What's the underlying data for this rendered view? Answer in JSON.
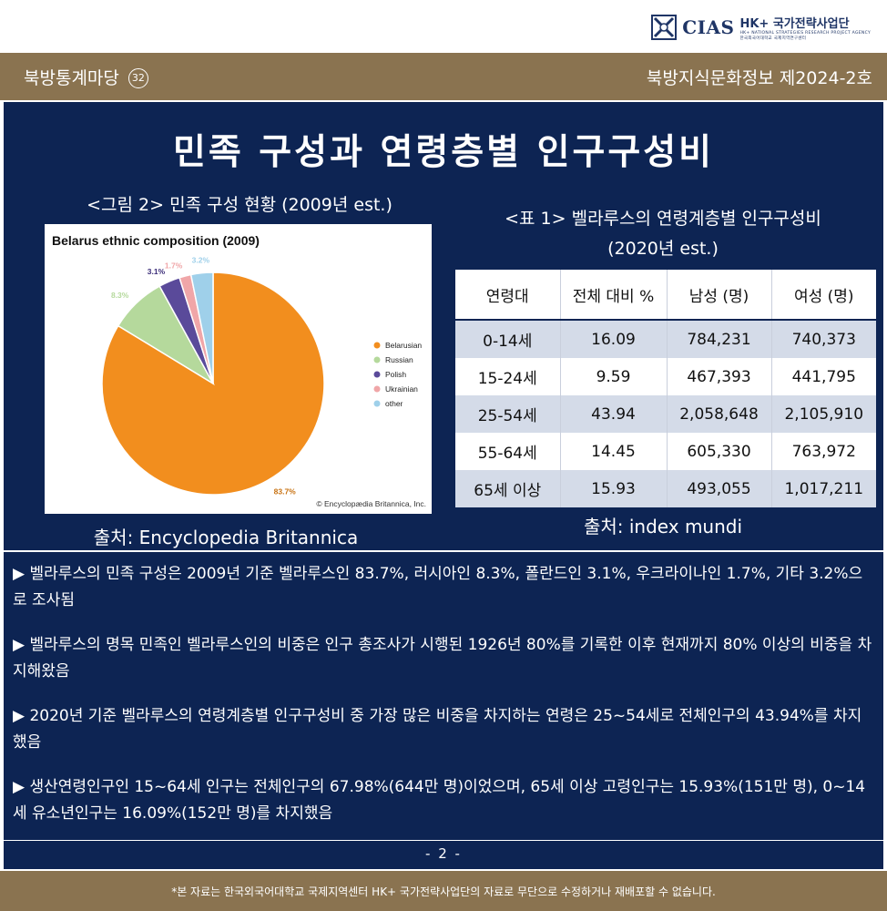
{
  "header": {
    "logo_text": "CIAS",
    "logo_program": "HK+ 국가전략사업단",
    "logo_subtitle_en": "HK+ NATIONAL STRATEGIES RESEARCH PROJECT AGENCY",
    "logo_subtitle_ko": "한국외국어대학교 국제지역연구센터",
    "series_name": "북방통계마당",
    "series_number": "32",
    "issue": "북방지식문화정보 제2024-2호"
  },
  "title": "민족 구성과 연령층별 인구구성비",
  "figure": {
    "caption": "<그림 2> 민족 구성 현황 (2009년 est.)",
    "source": "출처: Encyclopedia Britannica"
  },
  "chart_data": {
    "type": "pie",
    "title": "Belarus ethnic composition (2009)",
    "credit": "© Encyclopædia Britannica, Inc.",
    "legend_position": "right",
    "slices": [
      {
        "label": "Belarusian",
        "value": 83.7,
        "display": "83.7%",
        "color": "#f28e1e"
      },
      {
        "label": "Russian",
        "value": 8.3,
        "display": "8.3%",
        "color": "#b5d99c"
      },
      {
        "label": "Polish",
        "value": 3.1,
        "display": "3.1%",
        "color": "#5a4a9a"
      },
      {
        "label": "Ukrainian",
        "value": 1.7,
        "display": "1.7%",
        "color": "#f0a6a8"
      },
      {
        "label": "other",
        "value": 3.2,
        "display": "3.2%",
        "color": "#9fd0ea"
      }
    ]
  },
  "table": {
    "caption_line1": "<표 1> 벨라루스의 연령계층별 인구구성비",
    "caption_line2": "(2020년 est.)",
    "headers": [
      "연령대",
      "전체 대비 %",
      "남성 (명)",
      "여성 (명)"
    ],
    "rows": [
      [
        "0-14세",
        "16.09",
        "784,231",
        "740,373"
      ],
      [
        "15-24세",
        "9.59",
        "467,393",
        "441,795"
      ],
      [
        "25-54세",
        "43.94",
        "2,058,648",
        "2,105,910"
      ],
      [
        "55-64세",
        "14.45",
        "605,330",
        "763,972"
      ],
      [
        "65세 이상",
        "15.93",
        "493,055",
        "1,017,211"
      ]
    ],
    "source": "출처: index mundi"
  },
  "bullets": [
    "▶ 벨라루스의 민족 구성은 2009년 기준 벨라루스인 83.7%, 러시아인 8.3%, 폴란드인 3.1%, 우크라이나인 1.7%, 기타 3.2%으로 조사됨",
    "▶ 벨라루스의 명목 민족인 벨라루스인의 비중은 인구 총조사가 시행된 1926년 80%를 기록한 이후 현재까지 80% 이상의 비중을 차지해왔음",
    "▶ 2020년 기준 벨라루스의 연령계층별 인구구성비 중 가장 많은 비중을 차지하는 연령은 25~54세로 전체인구의 43.94%를 차지했음",
    "▶ 생산연령인구인 15~64세 인구는 전체인구의 67.98%(644만 명)이었으며, 65세 이상 고령인구는 15.93%(151만 명), 0~14세 유소년인구는 16.09%(152만 명)를 차지했음"
  ],
  "page_number": "- 2 -",
  "footer": "*본 자료는 한국외국어대학교 국제지역센터 HK+ 국가전략사업단의 자료로 무단으로 수정하거나 재배포할 수 없습니다."
}
